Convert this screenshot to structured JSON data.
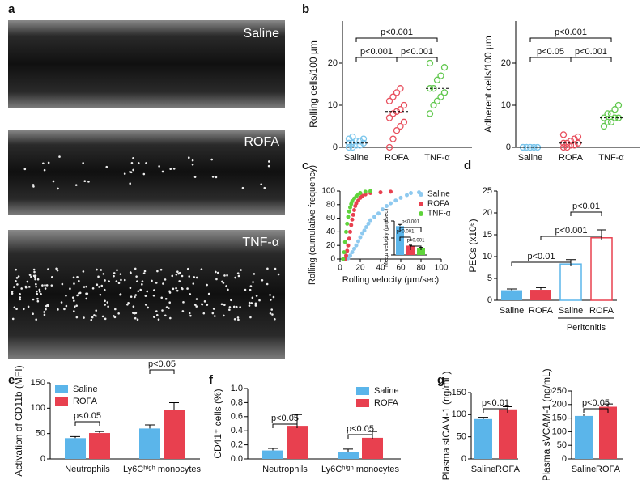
{
  "image_panel": {
    "panel": "a",
    "labels": [
      "Saline",
      "ROFA",
      "TNF-α"
    ]
  },
  "chart_data": [
    {
      "type": "strip",
      "panel": "b",
      "y_label": "Rolling cells/100 µm",
      "categories": [
        "Saline",
        "ROFA",
        "TNF-α"
      ],
      "colors": [
        "#7cc6ec",
        "#e8505e",
        "#62c84f"
      ],
      "values": [
        [
          0,
          0,
          0.5,
          0.5,
          1,
          1,
          1,
          1.5,
          1.5,
          2,
          2,
          2.5
        ],
        [
          0,
          2,
          4,
          5,
          6,
          7,
          8,
          8.5,
          9,
          10,
          11,
          12,
          13,
          14
        ],
        [
          8,
          10,
          11,
          12,
          13,
          14,
          14,
          16,
          17,
          19,
          20
        ]
      ],
      "medians": [
        1,
        8.5,
        14
      ],
      "ylim": [
        0,
        30
      ],
      "yticks": [
        0,
        10,
        20
      ],
      "annotations": [
        "p<0.001",
        "p<0.001",
        "p<0.001"
      ]
    },
    {
      "type": "strip",
      "y_label": "Adherent cells/100 µm",
      "categories": [
        "Saline",
        "ROFA",
        "TNF-α"
      ],
      "colors": [
        "#7cc6ec",
        "#e8505e",
        "#62c84f"
      ],
      "values": [
        [
          0,
          0,
          0,
          0,
          0,
          0,
          0,
          0,
          0,
          0,
          0,
          0
        ],
        [
          0,
          0,
          0.5,
          0.5,
          1,
          1,
          1,
          1.5,
          2,
          2.5,
          3
        ],
        [
          5,
          6,
          6,
          7,
          7,
          7,
          8,
          8,
          9,
          10
        ]
      ],
      "medians": [
        0,
        1,
        7
      ],
      "ylim": [
        0,
        30
      ],
      "yticks": [
        0,
        10,
        20
      ],
      "annotations": [
        "p<0.001",
        "p<0.05",
        "p<0.001"
      ]
    },
    {
      "type": "scatter",
      "panel": "c",
      "x_label": "Rolling velocity (µm/sec)",
      "y_label": "Rolling (cumulative frequency)",
      "xlim": [
        0,
        100
      ],
      "xticks": [
        0,
        20,
        40,
        60,
        80,
        100
      ],
      "ylim": [
        0,
        100
      ],
      "yticks": [
        0,
        20,
        40,
        60,
        80,
        100
      ],
      "legend": "upper right",
      "series": [
        {
          "name": "Saline",
          "color": "#8ec9ef",
          "x": [
            8,
            10,
            12,
            14,
            16,
            18,
            20,
            22,
            24,
            26,
            28,
            30,
            34,
            38,
            42,
            46,
            50,
            55,
            60,
            66,
            70,
            78
          ],
          "values": [
            1,
            5,
            10,
            15,
            20,
            26,
            32,
            38,
            42,
            47,
            52,
            57,
            62,
            67,
            73,
            78,
            82,
            86,
            90,
            94,
            97,
            98
          ]
        },
        {
          "name": "ROFA",
          "color": "#e8404f",
          "x": [
            5,
            6,
            7,
            8,
            9,
            10,
            11,
            12,
            13,
            14,
            15,
            16,
            18,
            20,
            22,
            25,
            30,
            40,
            50
          ],
          "values": [
            0,
            5,
            12,
            20,
            30,
            40,
            50,
            58,
            65,
            72,
            78,
            82,
            86,
            90,
            93,
            95,
            97,
            98,
            99
          ]
        },
        {
          "name": "TNF-α",
          "color": "#5fd33b",
          "x": [
            3,
            4,
            5,
            6,
            7,
            8,
            9,
            10,
            11,
            12,
            14,
            16,
            18,
            20,
            25,
            30
          ],
          "values": [
            0,
            10,
            25,
            40,
            52,
            62,
            70,
            76,
            81,
            85,
            89,
            92,
            95,
            97,
            99,
            100
          ]
        }
      ],
      "inset": {
        "type": "bar",
        "y_label": "Mean velocity (µm/sec)",
        "values": [
          34,
          11,
          8.5
        ],
        "errors": [
          2,
          0.6,
          0.4
        ],
        "colors": [
          "#5bb5ea",
          "#e8404f",
          "#5fd33b"
        ],
        "ylim": [
          0,
          40
        ],
        "yticks": [
          0,
          20,
          40
        ],
        "annotations": [
          "p<0.001",
          "p<0.001",
          "p<0.001"
        ]
      }
    },
    {
      "type": "bar",
      "panel": "d",
      "y_label": "PECs (x10⁶)",
      "categories": [
        "Saline",
        "ROFA",
        "Saline",
        "ROFA"
      ],
      "values": [
        2.3,
        2.4,
        8.3,
        14.3
      ],
      "errors": [
        0.3,
        0.5,
        1.0,
        1.8
      ],
      "colors": [
        "#5bb5ea",
        "#e8404f",
        "#5bb5ea",
        "#e8404f"
      ],
      "hollow": [
        false,
        false,
        true,
        true
      ],
      "group_label": "Peritonitis",
      "ylim": [
        0,
        25
      ],
      "yticks": [
        0,
        5,
        10,
        15,
        20,
        25
      ],
      "annotations": [
        "p<0.01",
        "p<0.001",
        "p<0.01"
      ]
    },
    {
      "type": "grouped_bar",
      "panel": "e",
      "y_label": "Activation of CD11b (MFI)",
      "categories": [
        "Neutrophils",
        "Ly6Cʰⁱᵍʰ monocytes"
      ],
      "legend": "upper left",
      "series": [
        {
          "name": "Saline",
          "color": "#5bb5ea",
          "values": [
            41,
            60
          ],
          "errors": [
            3,
            7
          ]
        },
        {
          "name": "ROFA",
          "color": "#e8404f",
          "values": [
            51,
            97
          ],
          "errors": [
            3,
            14
          ]
        }
      ],
      "ylim": [
        0,
        150
      ],
      "yticks": [
        0,
        50,
        100,
        150
      ],
      "annotations": [
        "p<0.05",
        "p<0.05"
      ]
    },
    {
      "type": "grouped_bar",
      "panel": "f",
      "y_label": "CD41⁺ cells (%)",
      "categories": [
        "Neutrophils",
        "Ly6Cʰⁱᵍʰ monocytes"
      ],
      "legend": "upper right",
      "series": [
        {
          "name": "Saline",
          "color": "#5bb5ea",
          "values": [
            0.12,
            0.1
          ],
          "errors": [
            0.03,
            0.04
          ]
        },
        {
          "name": "ROFA",
          "color": "#e8404f",
          "values": [
            0.47,
            0.3
          ],
          "errors": [
            0.16,
            0.09
          ]
        }
      ],
      "ylim": [
        0,
        1
      ],
      "yticks": [
        {
          "value": 0,
          "label": "0.0"
        },
        0.2,
        0.4,
        0.6,
        0.8,
        {
          "value": 1,
          "label": "1.0"
        }
      ],
      "annotations": [
        "p<0.05",
        "p<0.05"
      ]
    },
    {
      "type": "bar",
      "panel": "g",
      "y_label": "Plasma sICAM-1 (ng/mL)",
      "categories": [
        "Saline",
        "ROFA"
      ],
      "values": [
        90,
        112
      ],
      "errors": [
        4,
        6
      ],
      "colors": [
        "#5bb5ea",
        "#e8404f"
      ],
      "ylim": [
        0,
        150
      ],
      "yticks": [
        0,
        50,
        100,
        150
      ],
      "annotations": [
        "p<0.01"
      ]
    },
    {
      "type": "bar",
      "y_label": "Plasma sVCAM-1 (ng/mL)",
      "categories": [
        "Saline",
        "ROFA"
      ],
      "values": [
        158,
        192
      ],
      "errors": [
        7,
        10
      ],
      "colors": [
        "#5bb5ea",
        "#e8404f"
      ],
      "ylim": [
        0,
        250
      ],
      "yticks": [
        0,
        50,
        100,
        150,
        200,
        250
      ],
      "annotations": [
        "p<0.05"
      ]
    }
  ]
}
